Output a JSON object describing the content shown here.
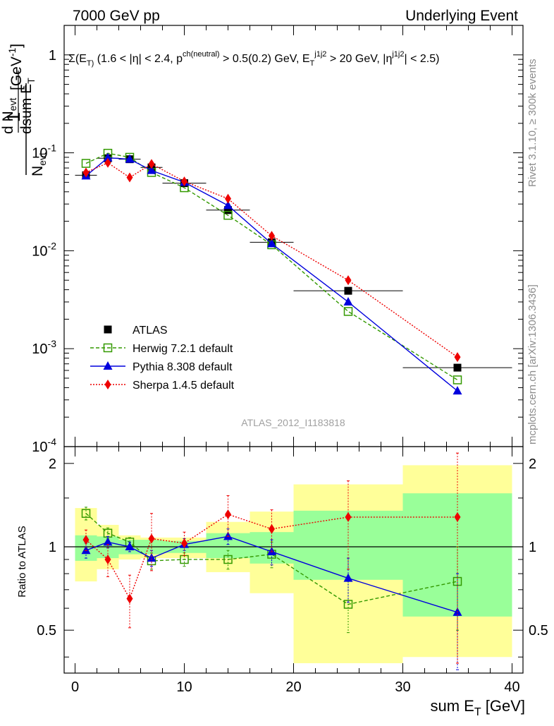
{
  "header": {
    "left": "7000 GeV pp",
    "right": "Underlying Event",
    "selection": "Σ(E_T) (1.6 < |η| < 2.4, p^ch(neutral) > 0.5(0.2) GeV, E_T^j1j2 > 20 GeV, |η^j1j2| < 2.5)"
  },
  "side_labels": {
    "rivet": "Rivet 3.1.10, ≥ 300k events",
    "mcplots": "mcplots.cern.ch [arXiv:1306.3436]"
  },
  "watermark": "ATLAS_2012_I1183818",
  "chart_data": [
    {
      "type": "scatter",
      "panel": "main",
      "ylabel": "1/N_evt dN_evt/dsum E_T [GeV^-1]",
      "yscale": "log",
      "ylim": [
        0.0001,
        2
      ],
      "xlim": [
        -1,
        41
      ],
      "ytick_labels": [
        "1",
        "10^-1",
        "10^-2",
        "10^-3",
        "10^-4"
      ],
      "legend_position": "lower-left",
      "data_x": [
        1,
        3,
        5,
        7,
        10,
        14,
        18,
        25,
        35
      ],
      "data_xerr": [
        1,
        1,
        1,
        1,
        2,
        2,
        2,
        5,
        5
      ],
      "series": [
        {
          "name": "ATLAS",
          "color": "#000000",
          "marker": "square-filled",
          "values": [
            0.059,
            0.088,
            0.086,
            0.071,
            0.049,
            0.026,
            0.0122,
            0.0039,
            0.00064
          ]
        },
        {
          "name": "Herwig 7.2.1 default",
          "color": "#339900",
          "marker": "square-open",
          "line": "dashed",
          "values": [
            0.078,
            0.099,
            0.09,
            0.063,
            0.044,
            0.023,
            0.0115,
            0.0024,
            0.00048
          ]
        },
        {
          "name": "Pythia 8.308 default",
          "color": "#0000dd",
          "marker": "triangle",
          "line": "solid",
          "values": [
            0.058,
            0.089,
            0.086,
            0.066,
            0.05,
            0.029,
            0.0118,
            0.003,
            0.00037
          ]
        },
        {
          "name": "Sherpa 1.4.5 default",
          "color": "#ee0000",
          "marker": "diamond",
          "line": "dotted",
          "values": [
            0.063,
            0.079,
            0.056,
            0.077,
            0.051,
            0.034,
            0.0142,
            0.005,
            0.00082
          ]
        }
      ]
    },
    {
      "type": "scatter",
      "panel": "ratio",
      "xlabel": "sum E_T [GeV]",
      "ylabel": "Ratio to ATLAS",
      "ylim": [
        0.35,
        2.3
      ],
      "xlim": [
        -1,
        41
      ],
      "ytick_labels": [
        "0.5",
        "1",
        "2"
      ],
      "xtick_labels": [
        "0",
        "10",
        "20",
        "30",
        "40"
      ],
      "bands": [
        {
          "x0": 0,
          "x1": 2,
          "inner": [
            0.89,
            1.1
          ],
          "outer": [
            0.75,
            1.38
          ]
        },
        {
          "x0": 2,
          "x1": 4,
          "inner": [
            0.91,
            1.09
          ],
          "outer": [
            0.83,
            1.2
          ]
        },
        {
          "x0": 4,
          "x1": 6,
          "inner": [
            0.94,
            1.06
          ],
          "outer": [
            0.9,
            1.1
          ]
        },
        {
          "x0": 6,
          "x1": 8,
          "inner": [
            0.94,
            1.06
          ],
          "outer": [
            0.91,
            1.08
          ]
        },
        {
          "x0": 8,
          "x1": 12,
          "inner": [
            0.95,
            1.05
          ],
          "outer": [
            0.91,
            1.08
          ]
        },
        {
          "x0": 12,
          "x1": 16,
          "inner": [
            0.91,
            1.12
          ],
          "outer": [
            0.81,
            1.23
          ]
        },
        {
          "x0": 16,
          "x1": 20,
          "inner": [
            0.87,
            1.13
          ],
          "outer": [
            0.68,
            1.34
          ]
        },
        {
          "x0": 20,
          "x1": 30,
          "inner": [
            0.76,
            1.35
          ],
          "outer": [
            0.38,
            1.68
          ]
        },
        {
          "x0": 30,
          "x1": 40,
          "inner": [
            0.56,
            1.56
          ],
          "outer": [
            0.4,
            1.97
          ]
        }
      ],
      "series": [
        {
          "name": "Herwig 7.2.1 default",
          "color": "#339900",
          "marker": "square-open",
          "line": "dashed",
          "values": [
            1.32,
            1.12,
            1.04,
            0.89,
            0.9,
            0.9,
            0.94,
            0.62,
            0.75
          ],
          "errors": [
            0.07,
            0.05,
            0.04,
            0.06,
            0.05,
            0.07,
            0.1,
            0.13,
            0.25
          ]
        },
        {
          "name": "Pythia 8.308 default",
          "color": "#0000dd",
          "marker": "triangle",
          "line": "solid",
          "values": [
            0.97,
            1.04,
            1.0,
            0.91,
            1.02,
            1.09,
            0.96,
            0.77,
            0.58
          ],
          "errors": [
            0.06,
            0.05,
            0.04,
            0.06,
            0.05,
            0.07,
            0.1,
            0.14,
            0.22
          ]
        },
        {
          "name": "Sherpa 1.4.5 default",
          "color": "#ee0000",
          "marker": "diamond",
          "line": "dotted",
          "values": [
            1.06,
            0.9,
            0.65,
            1.07,
            1.03,
            1.31,
            1.16,
            1.28,
            1.28
          ],
          "errors": [
            0.09,
            0.12,
            0.14,
            0.25,
            0.1,
            0.22,
            0.2,
            0.45,
            0.9
          ]
        }
      ]
    }
  ]
}
